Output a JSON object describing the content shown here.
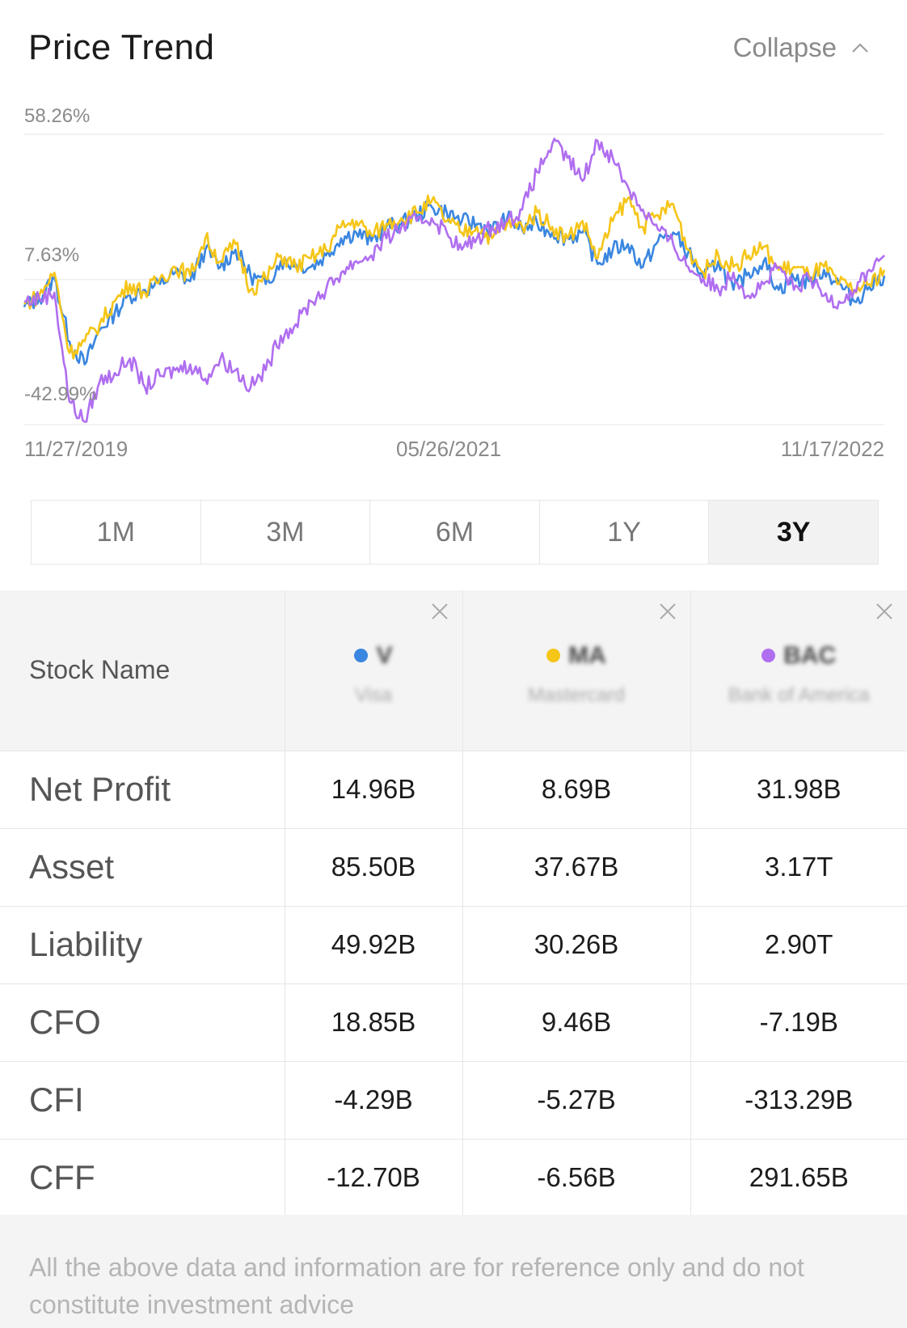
{
  "header": {
    "title": "Price Trend",
    "collapse_label": "Collapse"
  },
  "chart_data": {
    "type": "line",
    "y_tick_labels": [
      "58.26%",
      "7.63%",
      "-42.99%"
    ],
    "x_tick_labels": [
      "11/27/2019",
      "05/26/2021",
      "11/17/2022"
    ],
    "ylim": [
      -42.99,
      58.26
    ],
    "grid": true,
    "series": [
      {
        "color": "#3a86e0",
        "values": [
          -2,
          1,
          8,
          -14,
          -22,
          -10,
          -4,
          2,
          4,
          6,
          10,
          7,
          18,
          12,
          18,
          9,
          6,
          14,
          13,
          12,
          16,
          22,
          24,
          21,
          26,
          27,
          30,
          33,
          31,
          28,
          27,
          25,
          29,
          25,
          27,
          24,
          22,
          24,
          13,
          18,
          20,
          12,
          21,
          24,
          17,
          8,
          14,
          4,
          10,
          14,
          4,
          8,
          7,
          11,
          6,
          0,
          5,
          9
        ]
      },
      {
        "color": "#f5c518",
        "values": [
          -1,
          2,
          10,
          -18,
          -14,
          -8,
          0,
          6,
          3,
          8,
          12,
          9,
          22,
          14,
          20,
          4,
          8,
          16,
          12,
          15,
          18,
          26,
          28,
          23,
          27,
          29,
          31,
          35,
          28,
          24,
          26,
          22,
          27,
          26,
          31,
          26,
          22,
          28,
          15,
          28,
          36,
          26,
          30,
          34,
          18,
          10,
          16,
          12,
          16,
          19,
          11,
          12,
          9,
          12,
          6,
          4,
          6,
          11
        ]
      },
      {
        "color": "#b06ef0",
        "values": [
          0,
          1,
          3,
          -35,
          -42,
          -28,
          -25,
          -20,
          -30,
          -26,
          -24,
          -22,
          -27,
          -20,
          -24,
          -30,
          -24,
          -12,
          -8,
          0,
          4,
          10,
          14,
          16,
          22,
          26,
          28,
          29,
          24,
          18,
          22,
          26,
          28,
          32,
          45,
          55,
          50,
          42,
          56,
          50,
          40,
          32,
          25,
          20,
          12,
          8,
          4,
          10,
          2,
          6,
          12,
          4,
          8,
          2,
          0,
          4,
          11,
          16
        ]
      }
    ]
  },
  "periods": [
    {
      "label": "1M",
      "active": false
    },
    {
      "label": "3M",
      "active": false
    },
    {
      "label": "6M",
      "active": false
    },
    {
      "label": "1Y",
      "active": false
    },
    {
      "label": "3Y",
      "active": true
    }
  ],
  "table": {
    "header_label": "Stock Name",
    "stocks": [
      {
        "color": "#3a86e0",
        "ticker": "V",
        "name": "Visa"
      },
      {
        "color": "#f5c518",
        "ticker": "MA",
        "name": "Mastercard"
      },
      {
        "color": "#b06ef0",
        "ticker": "BAC",
        "name": "Bank of America"
      }
    ],
    "rows": [
      {
        "label": "Net Profit",
        "values": [
          "14.96B",
          "8.69B",
          "31.98B"
        ]
      },
      {
        "label": "Asset",
        "values": [
          "85.50B",
          "37.67B",
          "3.17T"
        ]
      },
      {
        "label": "Liability",
        "values": [
          "49.92B",
          "30.26B",
          "2.90T"
        ]
      },
      {
        "label": "CFO",
        "values": [
          "18.85B",
          "9.46B",
          "-7.19B"
        ]
      },
      {
        "label": "CFI",
        "values": [
          "-4.29B",
          "-5.27B",
          "-313.29B"
        ]
      },
      {
        "label": "CFF",
        "values": [
          "-12.70B",
          "-6.56B",
          "291.65B"
        ]
      }
    ]
  },
  "disclaimer": "All the above data and information are for reference only and do not constitute investment advice"
}
